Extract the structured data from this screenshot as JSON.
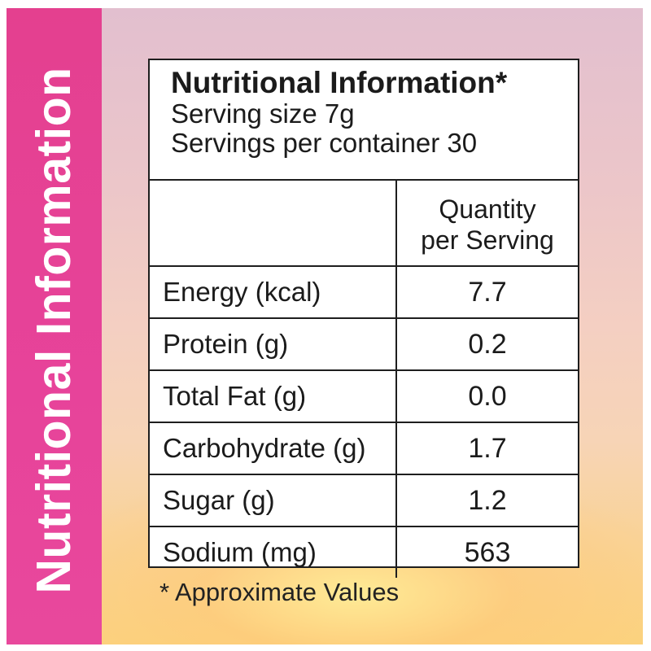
{
  "sidebar": {
    "title": "Nutritional Information"
  },
  "panel": {
    "title": "Nutritional Information*",
    "serving_size": "Serving size 7g",
    "servings_per_container": "Servings per container 30",
    "column_header_line1": "Quantity",
    "column_header_line2": "per Serving",
    "rows": [
      {
        "label": "Energy (kcal)",
        "value": "7.7"
      },
      {
        "label": "Protein (g)",
        "value": "0.2"
      },
      {
        "label": "Total Fat (g)",
        "value": "0.0"
      },
      {
        "label": "Carbohydrate (g)",
        "value": "1.7"
      },
      {
        "label": "Sugar (g)",
        "value": "1.2"
      },
      {
        "label": "Sodium (mg)",
        "value": "563"
      }
    ]
  },
  "footnote": "* Approximate Values",
  "colors": {
    "sidebar": "#e4408f",
    "border": "#1e1e1e",
    "text": "#1b1b1b"
  }
}
